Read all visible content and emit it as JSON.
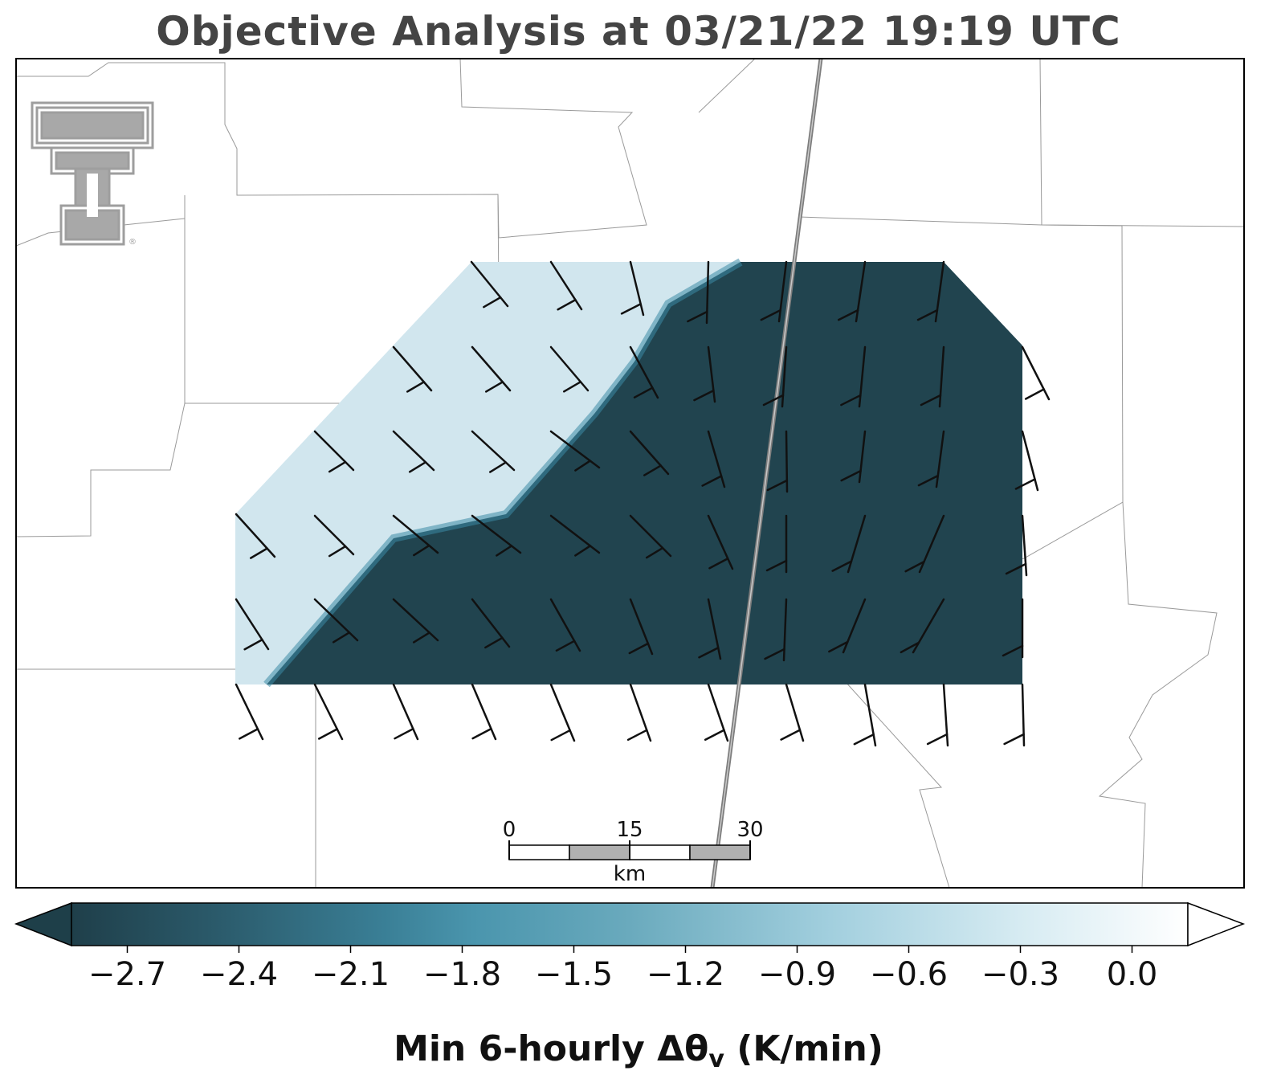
{
  "title": "Objective Analysis at 03/21/22 19:19 UTC",
  "colorbar": {
    "label_main": "Min 6-hourly Δθ",
    "label_sub": "v",
    "label_unit": " (K/min)",
    "ticks": [
      "−2.7",
      "−2.4",
      "−2.1",
      "−1.8",
      "−1.5",
      "−1.2",
      "−0.9",
      "−0.6",
      "−0.3",
      "0.0"
    ],
    "tick_values": [
      -2.7,
      -2.4,
      -2.1,
      -1.8,
      -1.5,
      -1.2,
      -0.9,
      -0.6,
      -0.3,
      0.0
    ],
    "range": [
      -2.85,
      0.15
    ],
    "colors": {
      "dark": "#21444f",
      "mid": "#4e97b0",
      "light": "#cfe6ee",
      "white": "#ffffff"
    }
  },
  "scale_bar": {
    "labels": [
      "0",
      "15",
      "30"
    ],
    "unit": "km"
  },
  "field": {
    "dark_value_color": "#21444f",
    "light_value_color": "#d0e6ee"
  },
  "logo": {
    "name": "texas-tech-double-t-logo",
    "color": "#9e9e9e"
  }
}
